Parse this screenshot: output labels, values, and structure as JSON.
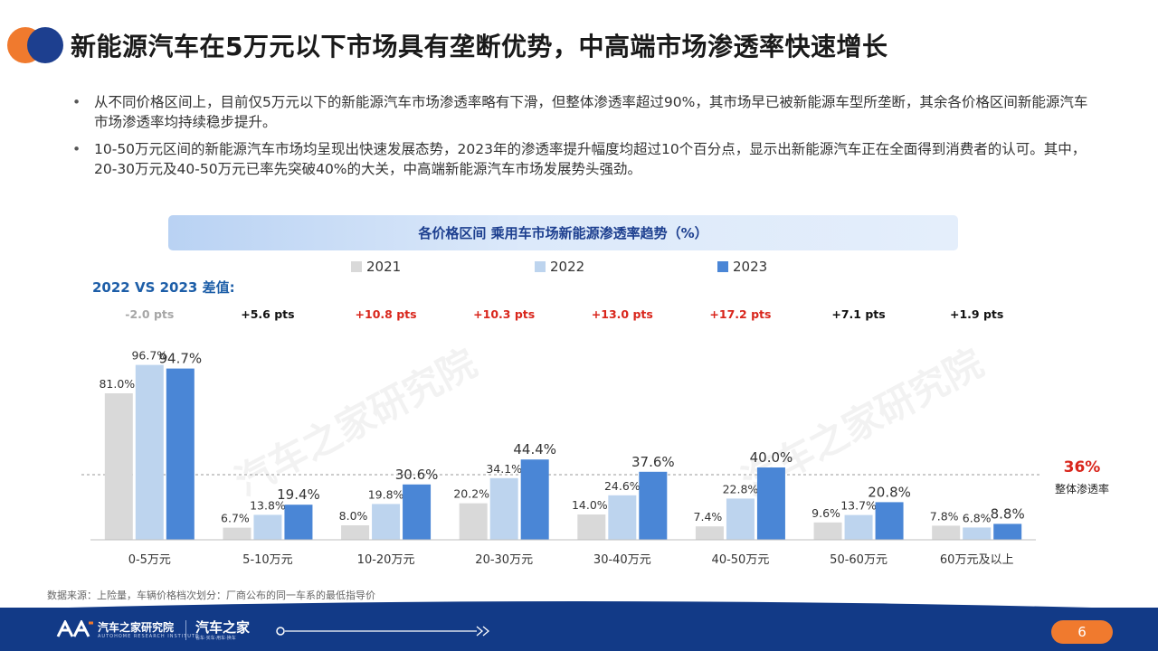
{
  "page": {
    "title": "新能源汽车在5万元以下市场具有垄断优势，中高端市场渗透率快速增长",
    "bullets": [
      "从不同价格区间上，目前仅5万元以下的新能源汽车市场渗透率略有下滑，但整体渗透率超过90%，其市场早已被新能源车型所垄断，其余各价格区间新能源汽车市场渗透率均持续稳步提升。",
      "10-50万元区间的新能源汽车市场均呈现出快速发展态势，2023年的渗透率提升幅度均超过10个百分点，显示出新能源汽车正在全面得到消费者的认可。其中，20-30万元及40-50万元已率先突破40%的大关，中高端新能源汽车市场发展势头强劲。"
    ],
    "bullet_mark": "•",
    "chart_banner": "各价格区间 乘用车市场新能源渗透率趋势（%）",
    "diff_label": "2022 VS 2023 差值:",
    "source": "数据来源：上险量，车辆价格档次划分：厂商公布的同一车系的最低指导价",
    "watermark": "汽车之家研究院",
    "footer": {
      "logo_text": "汽车之家研究院",
      "logo_sub": "AUTOHOME RESEARCH INSTITUTE",
      "brand_text": "汽车之家",
      "brand_sub": "看车·买车·用车·换车",
      "page_number": "6"
    }
  },
  "chart_data": {
    "type": "bar",
    "categories": [
      "0-5万元",
      "5-10万元",
      "10-20万元",
      "20-30万元",
      "30-40万元",
      "40-50万元",
      "50-60万元",
      "60万元及以上"
    ],
    "series": [
      {
        "name": "2021",
        "color": "#d9d9d9",
        "values": [
          81.0,
          6.7,
          8.0,
          20.2,
          14.0,
          7.4,
          9.6,
          7.8
        ],
        "labels": [
          "81.0%",
          "6.7%",
          "8.0%",
          "20.2%",
          "14.0%",
          "7.4%",
          "9.6%",
          "7.8%"
        ]
      },
      {
        "name": "2022",
        "color": "#bdd4ee",
        "values": [
          96.7,
          13.8,
          19.8,
          34.1,
          24.6,
          22.8,
          13.7,
          6.8
        ],
        "labels": [
          "96.7%",
          "13.8%",
          "19.8%",
          "34.1%",
          "24.6%",
          "22.8%",
          "13.7%",
          "6.8%"
        ]
      },
      {
        "name": "2023",
        "color": "#4a86d6",
        "values": [
          94.7,
          19.4,
          30.6,
          44.4,
          37.6,
          40.0,
          20.8,
          8.8
        ],
        "labels": [
          "94.7%",
          "19.4%",
          "30.6%",
          "44.4%",
          "37.6%",
          "40.0%",
          "20.8%",
          "8.8%"
        ]
      }
    ],
    "differences": [
      {
        "text": "-2.0 pts",
        "color": "#a6a6a6"
      },
      {
        "text": "+5.6 pts",
        "color": "#111111"
      },
      {
        "text": "+10.8 pts",
        "color": "#d9261c"
      },
      {
        "text": "+10.3 pts",
        "color": "#d9261c"
      },
      {
        "text": "+13.0 pts",
        "color": "#d9261c"
      },
      {
        "text": "+17.2 pts",
        "color": "#d9261c"
      },
      {
        "text": "+7.1 pts",
        "color": "#111111"
      },
      {
        "text": "+1.9 pts",
        "color": "#111111"
      }
    ],
    "reference_line": {
      "value": 36,
      "label": "36%",
      "sublabel": "整体渗透率",
      "color": "#d9261c"
    },
    "ylim": [
      0,
      100
    ],
    "legend_position": "top",
    "grid": false
  }
}
